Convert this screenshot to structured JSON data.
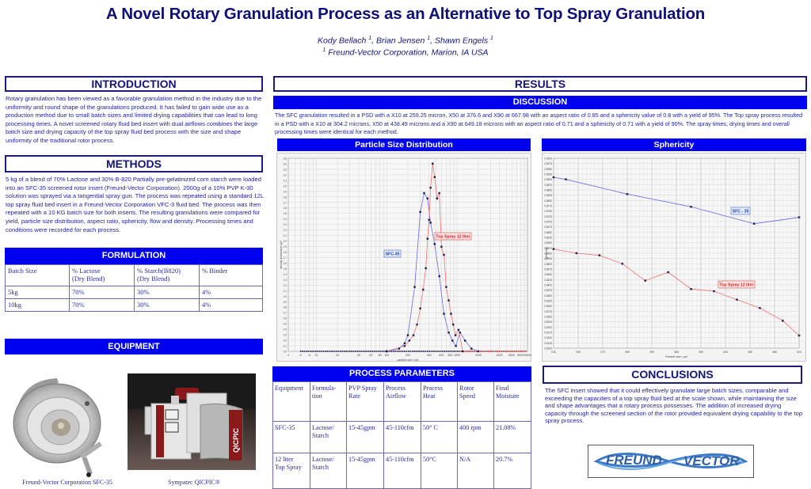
{
  "poster": {
    "title": "A Novel Rotary Granulation Process as an Alternative to Top Spray Granulation",
    "authors": [
      {
        "name": "Kody Bellach",
        "affil": "1"
      },
      {
        "name": "Brian Jensen",
        "affil": "1"
      },
      {
        "name": "Shawn Engels",
        "affil": "1"
      }
    ],
    "affiliation_mark": "1",
    "affiliation": "Freund-Vector Corporation, Marion, IA USA"
  },
  "introduction": {
    "heading": "INTRODUCTION",
    "text": "Rotary granulation has been viewed as a favorable granulation method in the industry due to the uniformity and round shape of the granulations produced.  It has failed to gain wide use as a production method due to small batch sizes and limited drying capabilities that can lead to long processing times.  A novel screened rotary fluid bed insert with dual airflows combines the large batch size and drying capacity of the top spray fluid bed process with the size and shape uniformity of the traditional rotor process."
  },
  "methods": {
    "heading": "METHODS",
    "text": "5 kg of a blend of 70% Lactose and 30% B-820 Partially pre-gelatinized corn starch were loaded into an SFC-35 screened rotor insert (Freund-Vector Corporation).  2000g of a 10% PVP K-30 solution was sprayed via a tangential spray gun.  The process was repeated using a standard 12L top spray fluid bed insert in a Freund-Vector Corporation VFC-3 fluid bed. The process was then repeated with a 10 KG batch size for both inserts. The resulting granulations were compared for yield, particle size distribution, aspect ratio, sphericity, flow and density.  Processing times and conditions were recorded for each process."
  },
  "formulation": {
    "heading": "FORMULATION",
    "columns": [
      "Batch Size",
      "% Lactose\n (Dry Blend)",
      "% Starch(B820)\n(Dry Blend)",
      "% Binder"
    ],
    "rows": [
      [
        "5kg",
        "70%",
        "30%",
        "4%"
      ],
      [
        "10kg",
        "70%",
        "30%",
        "4%"
      ]
    ]
  },
  "equipment": {
    "heading": "EQUIPMENT",
    "images": [
      {
        "caption": "Freund-Vector Corporation SFC-35",
        "alt": "SFC-35 rotor insert (stainless steel bowl)"
      },
      {
        "caption": "Sympatec QICPIC®",
        "alt": "QICPIC particle analyzer",
        "label": "QICPIC"
      }
    ]
  },
  "results": {
    "heading": "RESULTS",
    "discussion_heading": "DISCUSSION",
    "discussion_text": "The SFC granulation resulted in a PSD  with a X10 at 259.25 micron, X50 at 376.6 and X90 at 667.98 with an aspect ratio of 0.85 and a sphericity value of 0.8 with a yield of 95%.  The Top spray process resulted in a PSD  with a X10 at 304.2 microns, X50 at 438.49 microns and a X90 at 649.18 microns with an aspect ratio of 0.71 and a sphericity of 0.71 with a yield of 90%.  The spray times, drying times and overall processing times were identical for each method.",
    "psd_heading": "Particle Size Distribution",
    "sphericity_heading": "Sphericity"
  },
  "process_parameters": {
    "heading": "PROCESS PARAMETERS",
    "columns": [
      "Equipment",
      "Formula-\ntion",
      "PVP Spray\nRate",
      "Process\nAirflow",
      "Process\nHeat",
      "Rotor\nSpeed",
      "Final\nMoisture"
    ],
    "rows": [
      [
        "SFC-35",
        "Lactose/\nStarch",
        "15-45gpm",
        "45-110cfm",
        "50° C",
        "400 rpm",
        "21.08%"
      ],
      [
        "12 liter\nTop Spray",
        "Lactose/\nStarch",
        "15-45gpm",
        "45-110cfm",
        "50°C",
        "N/A",
        "20.7%"
      ]
    ]
  },
  "conclusions": {
    "heading": "CONCLUSIONS",
    "text": "The SFC insert showed that it could effectively granulate large batch sizes, comparable and exceeding the capacities of a top spray fluid bed at the scale shown, while maintaining the size and shape advantages that a rotary process possesses.  The addition of increased drying capacity through the screened section of the rotor provided equivalent drying capability to the top spray process."
  },
  "logo": {
    "left": "FREUND",
    "right": "VECTOR"
  },
  "colors": {
    "navy": "#13137a",
    "header_blue": "#0000f0",
    "text_blue": "#1e1ea0",
    "sfc_line": "#6a6ae0",
    "top_spray_line": "#f07070"
  },
  "chart_data": [
    {
      "type": "line",
      "title": "Particle Size Distribution",
      "xlabel": "particle size / µm",
      "ylabel": "density distribution q3*",
      "xscale": "log",
      "xlim": [
        4,
        10000
      ],
      "ylim": [
        0,
        3.6
      ],
      "grid": true,
      "x_ticks": [
        4,
        6,
        8,
        10,
        20,
        40,
        60,
        80,
        100,
        200,
        400,
        600,
        800,
        1000,
        2000,
        4000,
        6000,
        8000,
        10000
      ],
      "y_ticks": [
        0.0,
        0.1,
        0.2,
        0.3,
        0.4,
        0.5,
        0.6,
        0.7,
        0.8,
        0.9,
        1.0,
        1.1,
        1.2,
        1.3,
        1.4,
        1.5,
        1.6,
        1.7,
        1.8,
        1.9,
        2.0,
        2.1,
        2.2,
        2.3,
        2.4,
        2.5,
        2.6,
        2.7,
        2.8,
        2.9,
        3.0,
        3.1,
        3.2,
        3.3,
        3.4,
        3.5
      ],
      "series": [
        {
          "name": "SFC-35",
          "color": "#6a6ae0",
          "x": [
            100,
            150,
            180,
            200,
            250,
            300,
            340,
            380,
            420,
            480,
            560,
            650,
            760,
            860,
            960,
            1100,
            1300,
            1600,
            2000
          ],
          "y": [
            0.0,
            0.05,
            0.15,
            0.3,
            1.2,
            2.6,
            2.95,
            2.85,
            2.4,
            2.0,
            1.4,
            0.7,
            0.35,
            0.2,
            0.1,
            0.35,
            0.2,
            0.05,
            0.0
          ]
        },
        {
          "name": "Top Spray 12 liter",
          "color": "#f07070",
          "x": [
            100,
            180,
            210,
            240,
            270,
            300,
            330,
            360,
            380,
            400,
            420,
            450,
            480,
            520,
            560,
            600,
            650,
            700,
            760,
            820,
            880,
            950,
            1050,
            1200
          ],
          "y": [
            0.0,
            0.1,
            0.2,
            0.3,
            0.5,
            0.8,
            1.15,
            1.55,
            2.1,
            2.45,
            3.05,
            3.5,
            3.25,
            2.85,
            2.95,
            1.95,
            1.8,
            1.2,
            0.95,
            0.7,
            0.5,
            0.3,
            0.4,
            0.0
          ]
        }
      ],
      "annotations": [
        "SFC-35",
        "Top Spray 12 liter"
      ]
    },
    {
      "type": "line",
      "title": "Sphericity",
      "xlabel": "Particle size / µm",
      "ylabel": "Sphericity",
      "xlim": [
        210,
        510
      ],
      "ylim": [
        0.81,
        0.9
      ],
      "grid": true,
      "x_ticks": [
        210,
        240,
        270,
        300,
        330,
        360,
        390,
        420,
        450,
        480,
        510
      ],
      "series": [
        {
          "name": "SFC - 35",
          "color": "#6a6ae0",
          "x": [
            210,
            225,
            300,
            378,
            455,
            510
          ],
          "y": [
            0.891,
            0.89,
            0.883,
            0.877,
            0.869,
            0.872
          ]
        },
        {
          "name": "Top Spray 12 liter",
          "color": "#f07070",
          "x": [
            210,
            238,
            266,
            294,
            322,
            350,
            378,
            406,
            434,
            462,
            490,
            510
          ],
          "y": [
            0.857,
            0.855,
            0.854,
            0.85,
            0.842,
            0.846,
            0.838,
            0.837,
            0.833,
            0.829,
            0.823,
            0.816
          ]
        }
      ],
      "annotations": [
        "SFC - 35",
        "Top Spray 12 liter"
      ]
    }
  ]
}
